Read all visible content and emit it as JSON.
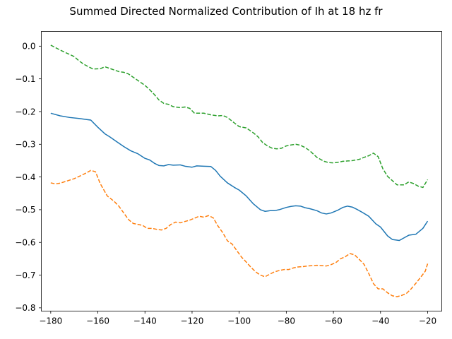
{
  "chart_data": {
    "type": "line",
    "title": "Summed Directed Normalized Contribution of Ih at 18 hz fr",
    "xlabel": "",
    "ylabel": "",
    "xlim": [
      -184,
      -14
    ],
    "ylim": [
      -0.81,
      0.045
    ],
    "xticks": [
      -180,
      -160,
      -140,
      -120,
      -100,
      -80,
      -60,
      -40,
      -20
    ],
    "xtick_labels": [
      "−180",
      "−160",
      "−140",
      "−120",
      "−100",
      "−80",
      "−60",
      "−40",
      "−20"
    ],
    "yticks": [
      0.0,
      -0.1,
      -0.2,
      -0.3,
      -0.4,
      -0.5,
      -0.6,
      -0.7,
      -0.8
    ],
    "ytick_labels": [
      "0.0",
      "−0.1",
      "−0.2",
      "−0.3",
      "−0.4",
      "−0.5",
      "−0.6",
      "−0.7",
      "−0.8"
    ],
    "grid": false,
    "series": [
      {
        "color": "#1f77b4",
        "style": "solid",
        "x": [
          -180,
          -176,
          -172,
          -168,
          -165,
          -163,
          -160,
          -157,
          -155,
          -152,
          -149,
          -146,
          -143,
          -140,
          -138,
          -136,
          -134,
          -132,
          -130,
          -128,
          -125,
          -123,
          -120,
          -118,
          -115,
          -112,
          -110,
          -108,
          -105,
          -102,
          -100,
          -97,
          -94,
          -91,
          -89,
          -87,
          -85,
          -83,
          -80,
          -78,
          -76,
          -74,
          -72,
          -70,
          -67,
          -65,
          -63,
          -61,
          -58,
          -56,
          -54,
          -52,
          -50,
          -48,
          -45,
          -42,
          -40,
          -37,
          -35,
          -32,
          -30,
          -28,
          -25,
          -22,
          -20
        ],
        "y": [
          -0.205,
          -0.213,
          -0.218,
          -0.221,
          -0.224,
          -0.226,
          -0.248,
          -0.268,
          -0.277,
          -0.292,
          -0.307,
          -0.32,
          -0.329,
          -0.343,
          -0.348,
          -0.358,
          -0.365,
          -0.366,
          -0.362,
          -0.364,
          -0.363,
          -0.367,
          -0.37,
          -0.366,
          -0.367,
          -0.368,
          -0.38,
          -0.398,
          -0.418,
          -0.432,
          -0.44,
          -0.458,
          -0.482,
          -0.5,
          -0.505,
          -0.503,
          -0.503,
          -0.5,
          -0.493,
          -0.49,
          -0.488,
          -0.489,
          -0.494,
          -0.497,
          -0.503,
          -0.51,
          -0.513,
          -0.51,
          -0.501,
          -0.493,
          -0.489,
          -0.492,
          -0.499,
          -0.507,
          -0.52,
          -0.543,
          -0.553,
          -0.58,
          -0.591,
          -0.594,
          -0.586,
          -0.578,
          -0.575,
          -0.557,
          -0.535
        ]
      },
      {
        "color": "#ff7f0e",
        "style": "dashed",
        "x": [
          -180,
          -178,
          -176,
          -173,
          -170,
          -167,
          -165,
          -163,
          -161,
          -159,
          -156,
          -153,
          -151,
          -149,
          -147,
          -145,
          -143,
          -141,
          -139,
          -137,
          -135,
          -133,
          -131,
          -129,
          -127,
          -125,
          -123,
          -121,
          -119,
          -117,
          -115,
          -113,
          -111,
          -109,
          -107,
          -105,
          -103,
          -101,
          -99,
          -97,
          -95,
          -93,
          -91,
          -89,
          -87,
          -85,
          -83,
          -81,
          -79,
          -77,
          -75,
          -73,
          -71,
          -69,
          -67,
          -65,
          -63,
          -61,
          -59,
          -57,
          -55,
          -53,
          -51,
          -49,
          -47,
          -45,
          -43,
          -41,
          -39,
          -37,
          -35,
          -33,
          -31,
          -29,
          -27,
          -25,
          -23,
          -21,
          -20
        ],
        "y": [
          -0.418,
          -0.421,
          -0.419,
          -0.412,
          -0.405,
          -0.395,
          -0.388,
          -0.38,
          -0.384,
          -0.42,
          -0.458,
          -0.475,
          -0.49,
          -0.51,
          -0.53,
          -0.542,
          -0.545,
          -0.548,
          -0.557,
          -0.557,
          -0.56,
          -0.562,
          -0.557,
          -0.545,
          -0.538,
          -0.54,
          -0.536,
          -0.532,
          -0.526,
          -0.52,
          -0.523,
          -0.518,
          -0.525,
          -0.55,
          -0.57,
          -0.595,
          -0.605,
          -0.625,
          -0.645,
          -0.66,
          -0.676,
          -0.69,
          -0.7,
          -0.705,
          -0.697,
          -0.69,
          -0.686,
          -0.683,
          -0.683,
          -0.678,
          -0.675,
          -0.674,
          -0.672,
          -0.671,
          -0.67,
          -0.671,
          -0.672,
          -0.668,
          -0.662,
          -0.65,
          -0.644,
          -0.634,
          -0.638,
          -0.652,
          -0.667,
          -0.695,
          -0.726,
          -0.742,
          -0.742,
          -0.754,
          -0.763,
          -0.766,
          -0.762,
          -0.756,
          -0.742,
          -0.725,
          -0.707,
          -0.688,
          -0.665
        ]
      },
      {
        "color": "#2ca02c",
        "style": "dashed",
        "x": [
          -180,
          -176,
          -173,
          -170,
          -168,
          -166,
          -164,
          -162,
          -159,
          -157,
          -155,
          -153,
          -151,
          -149,
          -147,
          -145,
          -142,
          -140,
          -138,
          -136,
          -134,
          -132,
          -130,
          -128,
          -125,
          -123,
          -121,
          -119,
          -117,
          -115,
          -112,
          -109,
          -107,
          -105,
          -102,
          -100,
          -97,
          -94,
          -92,
          -90,
          -88,
          -86,
          -84,
          -82,
          -80,
          -78,
          -76,
          -74,
          -72,
          -70,
          -67,
          -64,
          -62,
          -60,
          -58,
          -56,
          -54,
          -52,
          -49,
          -47,
          -45,
          -43,
          -41,
          -39,
          -37,
          -35,
          -33,
          -30,
          -28,
          -26,
          -24,
          -22,
          -20
        ],
        "y": [
          0.003,
          -0.012,
          -0.022,
          -0.032,
          -0.045,
          -0.055,
          -0.063,
          -0.07,
          -0.069,
          -0.063,
          -0.068,
          -0.073,
          -0.078,
          -0.08,
          -0.085,
          -0.095,
          -0.11,
          -0.12,
          -0.133,
          -0.148,
          -0.165,
          -0.175,
          -0.178,
          -0.185,
          -0.188,
          -0.186,
          -0.19,
          -0.205,
          -0.205,
          -0.205,
          -0.21,
          -0.213,
          -0.212,
          -0.218,
          -0.235,
          -0.246,
          -0.25,
          -0.265,
          -0.277,
          -0.295,
          -0.305,
          -0.312,
          -0.314,
          -0.312,
          -0.305,
          -0.302,
          -0.3,
          -0.303,
          -0.31,
          -0.32,
          -0.34,
          -0.352,
          -0.356,
          -0.357,
          -0.355,
          -0.352,
          -0.351,
          -0.35,
          -0.346,
          -0.34,
          -0.335,
          -0.327,
          -0.338,
          -0.375,
          -0.398,
          -0.411,
          -0.424,
          -0.424,
          -0.415,
          -0.42,
          -0.428,
          -0.432,
          -0.408
        ]
      }
    ]
  }
}
